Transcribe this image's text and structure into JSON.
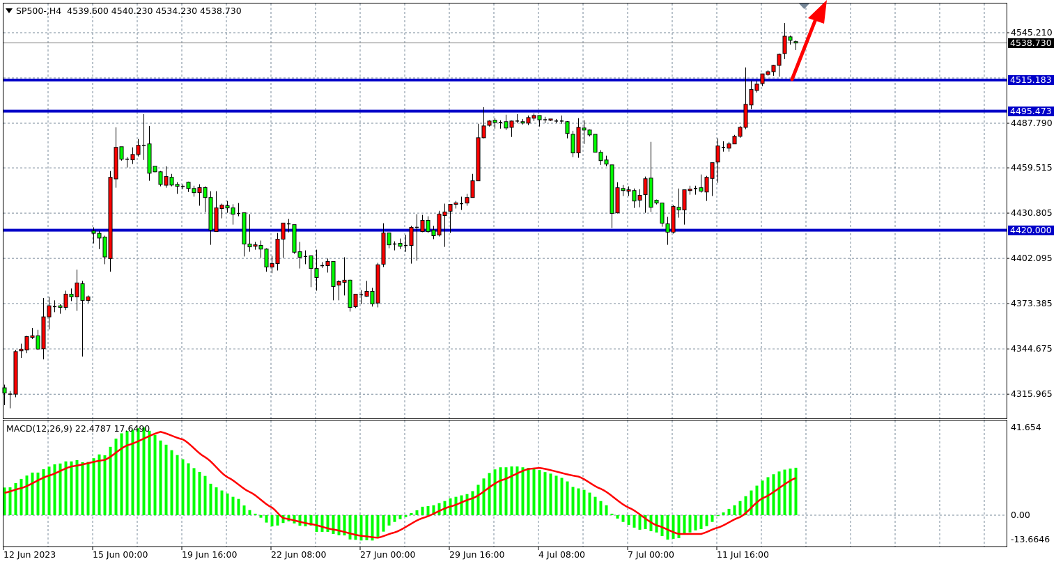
{
  "header": {
    "symbol": "SP500-,H4",
    "open": "4539.600",
    "high": "4540.230",
    "low": "4534.230",
    "close": "4538.730"
  },
  "colors": {
    "bull": "#ff0000",
    "bear": "#00ff00",
    "level_line": "#0000c8",
    "arrow": "#ff0000",
    "signal": "#ff0000",
    "histogram": "#00ff00",
    "grid": "#778899"
  },
  "price_axis": {
    "ticks": [
      "4545.210",
      "4487.790",
      "4459.515",
      "4430.805",
      "4402.095",
      "4373.385",
      "4344.675",
      "4315.965"
    ],
    "current_price": "4538.730"
  },
  "levels": [
    {
      "label": "4515.183"
    },
    {
      "label": "4495.473"
    },
    {
      "label": "4420.000"
    }
  ],
  "time_axis": {
    "labels": [
      "12 Jun 2023",
      "15 Jun 00:00",
      "19 Jun 16:00",
      "22 Jun 08:00",
      "27 Jun 00:00",
      "29 Jun 16:00",
      "4 Jul 08:00",
      "7 Jul 00:00",
      "11 Jul 16:00"
    ],
    "bars_per_label": 16
  },
  "macd": {
    "title": "MACD(12,26,9) 22.4787 17.6490",
    "axis": {
      "top": "41.654",
      "zero": "0.00",
      "bottom": "-13.6646"
    }
  },
  "chart_data": [
    {
      "type": "candlestick",
      "title": "SP500-,H4",
      "ylim": [
        4305,
        4560
      ],
      "grid": true,
      "levels": [
        4515.183,
        4495.473,
        4420.0
      ],
      "current_price": 4538.73,
      "annotation": "red up arrow from 4515.183 level",
      "ohlc": [
        [
          4320,
          4322,
          4309,
          4316.7
        ],
        [
          4316,
          4318,
          4307,
          4316
        ],
        [
          4316,
          4344,
          4314,
          4343
        ],
        [
          4343.5,
          4348,
          4339,
          4344.5
        ],
        [
          4344,
          4353,
          4342,
          4352.5
        ],
        [
          4352,
          4358,
          4351,
          4353
        ],
        [
          4353,
          4356.8,
          4344,
          4344.6
        ],
        [
          4344.8,
          4377,
          4338,
          4365
        ],
        [
          4365,
          4377.7,
          4357,
          4372
        ],
        [
          4371.5,
          4375.5,
          4368,
          4371.5
        ],
        [
          4372,
          4373,
          4367,
          4371
        ],
        [
          4371,
          4381.6,
          4369.3,
          4379.4
        ],
        [
          4379.4,
          4383,
          4375,
          4377.7
        ],
        [
          4377.7,
          4394.9,
          4368.8,
          4386.5
        ],
        [
          4386,
          4387.8,
          4339.8,
          4375.4
        ],
        [
          4375.4,
          4378.6,
          4373.7,
          4377.7
        ],
        [
          4419.5,
          4421.8,
          4411.6,
          4418
        ],
        [
          4418,
          4419.5,
          4408,
          4415
        ],
        [
          4415.6,
          4416.5,
          4398.4,
          4403
        ],
        [
          4402,
          4457.5,
          4393.6,
          4453.5
        ],
        [
          4452.5,
          4485.2,
          4446.9,
          4472.5
        ],
        [
          4472.9,
          4473,
          4464.1,
          4465
        ],
        [
          4465,
          4466.3,
          4459.7,
          4465
        ],
        [
          4464.6,
          4472.5,
          4461.9,
          4468
        ],
        [
          4468,
          4477.8,
          4466.7,
          4473.8
        ],
        [
          4473.8,
          4493.6,
          4464.5,
          4473.8
        ],
        [
          4474.7,
          4486.1,
          4451.3,
          4456.1
        ],
        [
          4460.5,
          4460.5,
          4456.6,
          4457
        ],
        [
          4457,
          4457.5,
          4447.8,
          4449
        ],
        [
          4448.5,
          4460.5,
          4446.9,
          4454
        ],
        [
          4453.5,
          4455.7,
          4447.8,
          4448.6
        ],
        [
          4449,
          4450.4,
          4443,
          4447.8
        ],
        [
          4447.8,
          4449,
          4446,
          4447.8
        ],
        [
          4450.4,
          4450.8,
          4444.2,
          4446.4
        ],
        [
          4446.4,
          4448.2,
          4441.2,
          4443.8
        ],
        [
          4443.8,
          4449.1,
          4435.5,
          4447
        ],
        [
          4447,
          4447.8,
          4431.4,
          4440.7
        ],
        [
          4440.7,
          4444.7,
          4410.7,
          4420
        ],
        [
          4419.1,
          4444.7,
          4419.1,
          4434.1
        ],
        [
          4433.7,
          4436.8,
          4427.5,
          4435.9
        ],
        [
          4435.5,
          4438.5,
          4431,
          4434.1
        ],
        [
          4434.1,
          4436.4,
          4423.5,
          4430.1
        ],
        [
          4430.6,
          4437.2,
          4428.8,
          4430.6
        ],
        [
          4431,
          4431,
          4403.3,
          4411.2
        ],
        [
          4411.2,
          4430.1,
          4406.3,
          4409.4
        ],
        [
          4409.8,
          4412.5,
          4407.6,
          4410.7
        ],
        [
          4410.3,
          4413.4,
          4402.4,
          4408
        ],
        [
          4408,
          4408.5,
          4393.6,
          4396.6
        ],
        [
          4396.6,
          4403.7,
          4392.7,
          4398.8
        ],
        [
          4398.8,
          4418.2,
          4394.4,
          4414.3
        ],
        [
          4414.3,
          4424.5,
          4402.4,
          4424.5
        ],
        [
          4424,
          4427.1,
          4418.6,
          4424
        ],
        [
          4423.5,
          4423.5,
          4405,
          4406
        ],
        [
          4406.3,
          4412.5,
          4395.7,
          4402.8
        ],
        [
          4403.3,
          4407.2,
          4398.4,
          4403.3
        ],
        [
          4403.7,
          4403.7,
          4383.9,
          4395.7
        ],
        [
          4395.7,
          4407.6,
          4381.6,
          4390
        ],
        [
          4397.5,
          4399.7,
          4396.1,
          4397.5
        ],
        [
          4397.5,
          4402,
          4393.1,
          4400.2
        ],
        [
          4400.2,
          4400.2,
          4375.5,
          4384.3
        ],
        [
          4385.2,
          4388.3,
          4375.5,
          4387.4
        ],
        [
          4386.9,
          4402.8,
          4378.6,
          4388.3
        ],
        [
          4388.3,
          4388.7,
          4368.4,
          4371
        ],
        [
          4371.5,
          4379.4,
          4370.6,
          4379.4
        ],
        [
          4379,
          4382,
          4373,
          4379
        ],
        [
          4378.1,
          4387.8,
          4377.7,
          4381.2
        ],
        [
          4381.2,
          4383.4,
          4371.5,
          4373.2
        ],
        [
          4373.8,
          4399.3,
          4371,
          4398
        ],
        [
          4398.4,
          4424.4,
          4396.6,
          4418.2
        ],
        [
          4418.2,
          4418.2,
          4408.5,
          4410.7
        ],
        [
          4411.2,
          4412.9,
          4407.2,
          4411.2
        ],
        [
          4411.6,
          4414.7,
          4408,
          4409.8
        ],
        [
          4410.3,
          4417,
          4406.3,
          4410.3
        ],
        [
          4410.3,
          4422.7,
          4398.8,
          4421.8
        ],
        [
          4421.8,
          4430.1,
          4400.6,
          4421.8
        ],
        [
          4419.1,
          4429.7,
          4418.7,
          4426.2
        ],
        [
          4426.2,
          4428.8,
          4418.2,
          4419.1
        ],
        [
          4420,
          4422.7,
          4414.3,
          4416.5
        ],
        [
          4416.9,
          4432.3,
          4416,
          4430.1
        ],
        [
          4429.3,
          4436.8,
          4409.4,
          4431.5
        ],
        [
          4432,
          4436.4,
          4418.2,
          4436.4
        ],
        [
          4436.4,
          4438.5,
          4433.7,
          4437.3
        ],
        [
          4436.8,
          4441.2,
          4432.8,
          4436.8
        ],
        [
          4437.2,
          4443,
          4435.5,
          4440.7
        ],
        [
          4440.7,
          4455.7,
          4440.7,
          4451.3
        ],
        [
          4451.3,
          4487.5,
          4451.3,
          4478.6
        ],
        [
          4478.6,
          4498,
          4478.2,
          4486.1
        ],
        [
          4486.5,
          4489.7,
          4485.7,
          4489.2
        ],
        [
          4489.7,
          4491,
          4484.4,
          4488.3
        ],
        [
          4488.3,
          4489.7,
          4484.4,
          4488.3
        ],
        [
          4488.8,
          4493.2,
          4483.5,
          4484.8
        ],
        [
          4485.2,
          4489.5,
          4479.1,
          4489.2
        ],
        [
          4489.2,
          4493.6,
          4488,
          4489.2
        ],
        [
          4488.8,
          4490.5,
          4487,
          4487.9
        ],
        [
          4487.9,
          4492.7,
          4486.6,
          4491.4
        ],
        [
          4491,
          4494,
          4489.2,
          4492.7
        ],
        [
          4492.7,
          4492.7,
          4485.7,
          4490
        ],
        [
          4490,
          4491.9,
          4487.9,
          4490
        ],
        [
          4489.7,
          4490.5,
          4489.2,
          4490.5
        ],
        [
          4489.2,
          4490.5,
          4487.9,
          4489.2
        ],
        [
          4489.2,
          4492.7,
          4487.5,
          4489.2
        ],
        [
          4488.8,
          4489.2,
          4478.2,
          4481.3
        ],
        [
          4480.8,
          4483,
          4466.3,
          4469
        ],
        [
          4469,
          4491,
          4465.9,
          4485.2
        ],
        [
          4484.8,
          4489.7,
          4474.7,
          4483.5
        ],
        [
          4483.5,
          4483.9,
          4479.5,
          4480.4
        ],
        [
          4480.8,
          4480.8,
          4469.4,
          4469.4
        ],
        [
          4469.4,
          4470.7,
          4461.4,
          4464.1
        ],
        [
          4464.5,
          4467.2,
          4460.5,
          4461.9
        ],
        [
          4461.4,
          4461.4,
          4421.3,
          4430.6
        ],
        [
          4431,
          4450.4,
          4430.6,
          4446.9
        ],
        [
          4446.4,
          4448.6,
          4441.6,
          4445.1
        ],
        [
          4444.7,
          4447.8,
          4441.6,
          4445.6
        ],
        [
          4445.1,
          4446.4,
          4434.1,
          4438.5
        ],
        [
          4439,
          4446,
          4434.5,
          4442.1
        ],
        [
          4442.5,
          4454,
          4431,
          4452.6
        ],
        [
          4453,
          4476,
          4431.4,
          4434.5
        ],
        [
          4439,
          4439.4,
          4436.3,
          4437.2
        ],
        [
          4437.2,
          4437.2,
          4422.2,
          4424.4
        ],
        [
          4424,
          4428.4,
          4410.7,
          4418.7
        ],
        [
          4418.7,
          4435.9,
          4417.8,
          4435
        ],
        [
          4434.5,
          4446.4,
          4427.9,
          4432.8
        ],
        [
          4432.8,
          4445.6,
          4423.5,
          4445.6
        ],
        [
          4445.1,
          4448.2,
          4442.5,
          4446
        ],
        [
          4446.4,
          4448.2,
          4442.5,
          4446.4
        ],
        [
          4446.9,
          4455.3,
          4443.8,
          4444.7
        ],
        [
          4444.2,
          4454.4,
          4438.5,
          4453.5
        ],
        [
          4452.8,
          4462.8,
          4441.6,
          4462.8
        ],
        [
          4463.2,
          4478.2,
          4450,
          4473.4
        ],
        [
          4472.5,
          4476.4,
          4469.8,
          4472.5
        ],
        [
          4472,
          4476,
          4469.8,
          4474.7
        ],
        [
          4474.7,
          4480.4,
          4474.7,
          4479.5
        ],
        [
          4479.5,
          4486.1,
          4478.6,
          4485.2
        ],
        [
          4485.2,
          4523.2,
          4484,
          4499.8
        ],
        [
          4499.4,
          4514.8,
          4496.7,
          4509.2
        ],
        [
          4508.6,
          4514.8,
          4507.3,
          4512.6
        ],
        [
          4513,
          4519.1,
          4511.3,
          4519.1
        ],
        [
          4518.7,
          4521.4,
          4517.9,
          4520.5
        ],
        [
          4520.5,
          4524.9,
          4517.9,
          4524.5
        ],
        [
          4524.5,
          4532,
          4517.4,
          4531.5
        ],
        [
          4532,
          4551.4,
          4528.5,
          4543
        ],
        [
          4542.6,
          4543.4,
          4537.7,
          4540.4
        ],
        [
          4539.6,
          4540.23,
          4534.23,
          4538.73
        ]
      ]
    },
    {
      "type": "bar",
      "title": "MACD(12,26,9)",
      "ylim": [
        -13.6646,
        41.654
      ],
      "histogram": [
        13.1,
        13.2,
        15.2,
        17.2,
        18.8,
        20.2,
        20.2,
        21.8,
        23.0,
        24.1,
        24.5,
        25.5,
        25.5,
        26.1,
        25.1,
        25.2,
        27.0,
        28.8,
        28.4,
        32.4,
        36.3,
        38.8,
        39.9,
        40.5,
        41.2,
        41.6,
        40.0,
        38.0,
        35.4,
        33.4,
        30.8,
        28.5,
        26.5,
        24.6,
        22.3,
        20.5,
        18.6,
        14.9,
        13.2,
        11.7,
        10.3,
        8.7,
        7.7,
        4.6,
        2.4,
        0.7,
        -1.2,
        -3.5,
        -5.3,
        -4.9,
        -3.7,
        -2.9,
        -3.9,
        -5.0,
        -5.3,
        -4.9,
        -7.9,
        -7.9,
        -7.9,
        -8.9,
        -9.5,
        -9.6,
        -11.5,
        -11.7,
        -12.0,
        -11.9,
        -12.0,
        -10.2,
        -7.8,
        -4.9,
        -3.2,
        -1.9,
        -0.9,
        1.0,
        2.3,
        4.0,
        4.3,
        4.7,
        5.7,
        6.7,
        8.0,
        8.7,
        9.4,
        10.0,
        11.4,
        14.4,
        17.4,
        20.0,
        21.7,
        22.7,
        22.7,
        23.1,
        23.1,
        22.7,
        22.4,
        22.0,
        21.4,
        20.4,
        19.7,
        18.7,
        17.7,
        16.0,
        13.4,
        12.7,
        12.0,
        10.7,
        8.7,
        6.7,
        4.7,
        0.7,
        -1.6,
        -3.2,
        -4.6,
        -5.9,
        -6.9,
        -6.6,
        -7.6,
        -8.2,
        -9.9,
        -11.6,
        -11.2,
        -10.9,
        -8.9,
        -8.2,
        -7.2,
        -6.6,
        -5.2,
        -3.2,
        -0.4,
        1.3,
        3.0,
        4.7,
        6.7,
        9.0,
        11.7,
        14.0,
        16.4,
        18.0,
        19.4,
        20.7,
        21.6,
        22.1,
        22.48
      ],
      "signal_points": [
        [
          0,
          10.6
        ],
        [
          3,
          12.8
        ],
        [
          8,
          18.8
        ],
        [
          12,
          23.1
        ],
        [
          18,
          26.2
        ],
        [
          22,
          33.1
        ],
        [
          28,
          39.5
        ],
        [
          32,
          35.9
        ],
        [
          36,
          27.5
        ],
        [
          40,
          18.0
        ],
        [
          44,
          11.0
        ],
        [
          48,
          3.6
        ],
        [
          50,
          -1.4
        ],
        [
          55,
          -4.2
        ],
        [
          59,
          -6.8
        ],
        [
          64,
          -9.8
        ],
        [
          67,
          -10.7
        ],
        [
          70,
          -8.2
        ],
        [
          75,
          -1.4
        ],
        [
          80,
          4.1
        ],
        [
          84,
          8.0
        ],
        [
          89,
          16.4
        ],
        [
          94,
          21.9
        ],
        [
          96,
          22.4
        ],
        [
          103,
          18.3
        ],
        [
          107,
          12.5
        ],
        [
          112,
          3.6
        ],
        [
          117,
          -4.8
        ],
        [
          121,
          -8.9
        ],
        [
          125,
          -8.9
        ],
        [
          128,
          -5.9
        ],
        [
          132,
          -0.9
        ],
        [
          136,
          8.0
        ],
        [
          142,
          17.649
        ]
      ]
    }
  ]
}
